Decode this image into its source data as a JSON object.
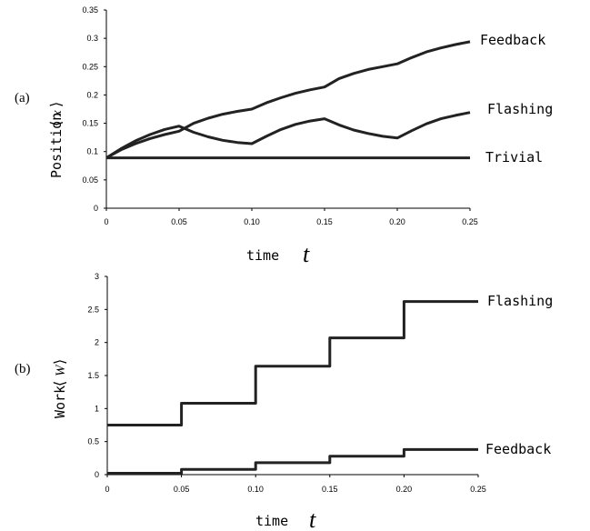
{
  "chart_data": [
    {
      "type": "line",
      "panel": "(a)",
      "xlabel": "time",
      "xlabel_symbol": "t",
      "ylabel": "Position",
      "ylabel_symbol": "x",
      "xlim": [
        0,
        0.25
      ],
      "ylim": [
        0,
        0.35
      ],
      "x_ticks": [
        "0",
        "0.05",
        "0.10",
        "0.15",
        "0.20",
        "0.25"
      ],
      "y_ticks": [
        "0",
        "0.05",
        "0.1",
        "0.15",
        "0.2",
        "0.25",
        "0.3",
        "0.35"
      ],
      "grid": false,
      "series": [
        {
          "name": "Feedback",
          "x": [
            0,
            0.01,
            0.02,
            0.03,
            0.04,
            0.05,
            0.06,
            0.07,
            0.08,
            0.09,
            0.1,
            0.11,
            0.12,
            0.13,
            0.14,
            0.15,
            0.16,
            0.17,
            0.18,
            0.19,
            0.2,
            0.21,
            0.22,
            0.23,
            0.24,
            0.25
          ],
          "y": [
            0.089,
            0.103,
            0.114,
            0.123,
            0.13,
            0.136,
            0.15,
            0.159,
            0.166,
            0.171,
            0.175,
            0.186,
            0.195,
            0.203,
            0.209,
            0.214,
            0.229,
            0.238,
            0.245,
            0.25,
            0.255,
            0.266,
            0.276,
            0.283,
            0.289,
            0.294
          ]
        },
        {
          "name": "Flashing",
          "x": [
            0,
            0.01,
            0.02,
            0.03,
            0.04,
            0.05,
            0.06,
            0.07,
            0.08,
            0.09,
            0.1,
            0.11,
            0.12,
            0.13,
            0.14,
            0.15,
            0.16,
            0.17,
            0.18,
            0.19,
            0.2,
            0.21,
            0.22,
            0.23,
            0.24,
            0.25
          ],
          "y": [
            0.089,
            0.105,
            0.119,
            0.13,
            0.139,
            0.145,
            0.134,
            0.126,
            0.12,
            0.116,
            0.114,
            0.127,
            0.139,
            0.148,
            0.154,
            0.158,
            0.147,
            0.138,
            0.132,
            0.127,
            0.124,
            0.137,
            0.149,
            0.158,
            0.164,
            0.169
          ]
        },
        {
          "name": "Trivial",
          "x": [
            0,
            0.25
          ],
          "y": [
            0.089,
            0.089
          ]
        }
      ]
    },
    {
      "type": "line",
      "panel": "(b)",
      "xlabel": "time",
      "xlabel_symbol": "t",
      "ylabel": "Work",
      "ylabel_symbol": "W",
      "xlim": [
        0,
        0.25
      ],
      "ylim": [
        0,
        3
      ],
      "x_ticks": [
        "0",
        "0.05",
        "0.10",
        "0.15",
        "0.20",
        "0.25"
      ],
      "y_ticks": [
        "0",
        "0.5",
        "1",
        "1.5",
        "2",
        "2.5",
        "3"
      ],
      "grid": false,
      "series": [
        {
          "name": "Flashing",
          "x": [
            0,
            0.05,
            0.05,
            0.1,
            0.1,
            0.15,
            0.15,
            0.2,
            0.2,
            0.25
          ],
          "y": [
            0.75,
            0.75,
            1.08,
            1.08,
            1.64,
            1.64,
            2.07,
            2.07,
            2.62,
            2.62
          ]
        },
        {
          "name": "Feedback",
          "x": [
            0,
            0.05,
            0.05,
            0.1,
            0.1,
            0.15,
            0.15,
            0.2,
            0.2,
            0.25
          ],
          "y": [
            0.02,
            0.02,
            0.08,
            0.08,
            0.18,
            0.18,
            0.28,
            0.28,
            0.38,
            0.38
          ]
        }
      ]
    }
  ]
}
